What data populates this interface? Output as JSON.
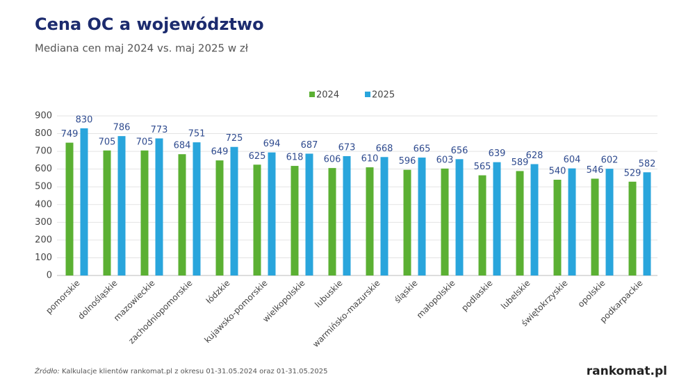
{
  "chart_data": {
    "type": "bar",
    "title": "Cena OC a województwo",
    "subtitle": "Mediana cen maj 2024 vs. maj 2025 w zł",
    "categories": [
      "pomorskie",
      "dolnośląskie",
      "mazowieckie",
      "zachodniopomorskie",
      "łódzkie",
      "kujawsko-pomorskie",
      "wielkopolskie",
      "lubuskie",
      "warmińsko-mazurskie",
      "śląskie",
      "małopolskie",
      "podlaskie",
      "lubelskie",
      "świętokrzyskie",
      "opolskie",
      "podkarpackie"
    ],
    "series": [
      {
        "name": "2024",
        "color": "#5bb033",
        "values": [
          749,
          705,
          705,
          684,
          649,
          625,
          618,
          606,
          610,
          596,
          603,
          565,
          589,
          540,
          546,
          529
        ]
      },
      {
        "name": "2025",
        "color": "#29a5dc",
        "values": [
          830,
          786,
          773,
          751,
          725,
          694,
          687,
          673,
          668,
          665,
          656,
          639,
          628,
          604,
          602,
          582
        ]
      }
    ],
    "ylim": [
      0,
      900
    ],
    "yticks": [
      0,
      100,
      200,
      300,
      400,
      500,
      600,
      700,
      800,
      900
    ],
    "grid": true,
    "legend": "top",
    "source_label": "Źródło:",
    "source_text": "Kalkulacje klientów rankomat.pl z okresu 01-31.05.2024 oraz 01-31.05.2025",
    "logo": "rankomat.pl"
  }
}
